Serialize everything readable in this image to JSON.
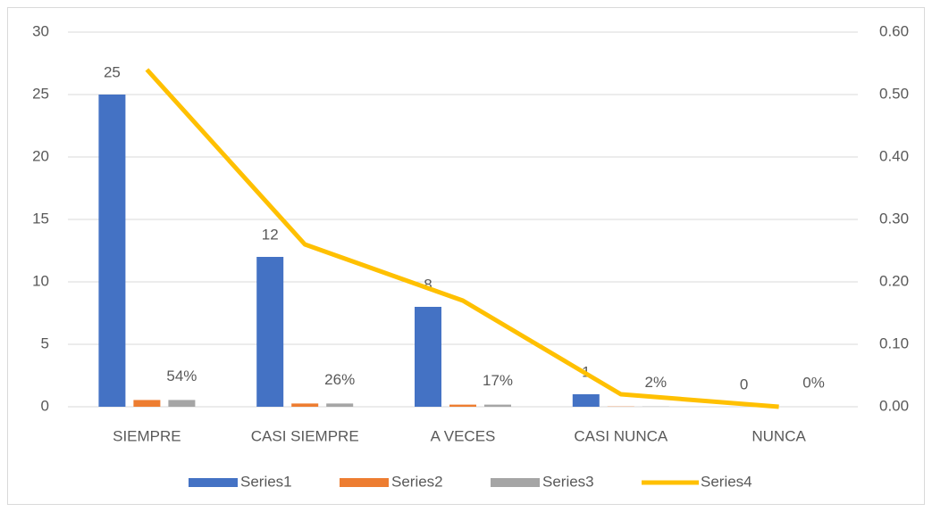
{
  "chart_data": {
    "type": "bar",
    "categories": [
      "SIEMPRE",
      "CASI SIEMPRE",
      "A VECES",
      "CASI NUNCA",
      "NUNCA"
    ],
    "series": [
      {
        "name": "Series1",
        "color": "#4472c4",
        "values": [
          25,
          12,
          8,
          1,
          0
        ]
      },
      {
        "name": "Series2",
        "color": "#ed7d31",
        "values": [
          0.54,
          0.26,
          0.17,
          0.02,
          0
        ]
      },
      {
        "name": "Series3",
        "color": "#a5a5a5",
        "values": [
          0.54,
          0.26,
          0.17,
          0.02,
          0
        ],
        "value_labels": [
          "54%",
          "26%",
          "17%",
          "2%",
          "0%"
        ]
      },
      {
        "name": "Series4",
        "color": "#ffc000",
        "type": "line",
        "axis": "y2",
        "values": [
          0.54,
          0.26,
          0.17,
          0.02,
          0
        ]
      }
    ],
    "ylim": [
      0,
      30
    ],
    "yticks": [
      0,
      5,
      10,
      15,
      20,
      25,
      30
    ],
    "y2lim": [
      0,
      0.6
    ],
    "y2ticks": [
      {
        "value": 0,
        "label": "0.00"
      },
      {
        "value": 0.1,
        "label": "0.10"
      },
      {
        "value": 0.2,
        "label": "0.20"
      },
      {
        "value": 0.3,
        "label": "0.30"
      },
      {
        "value": 0.4,
        "label": "0.40"
      },
      {
        "value": 0.5,
        "label": "0.50"
      },
      {
        "value": 0.6,
        "label": "0.60"
      }
    ],
    "grid": true,
    "legend": "bottom"
  }
}
